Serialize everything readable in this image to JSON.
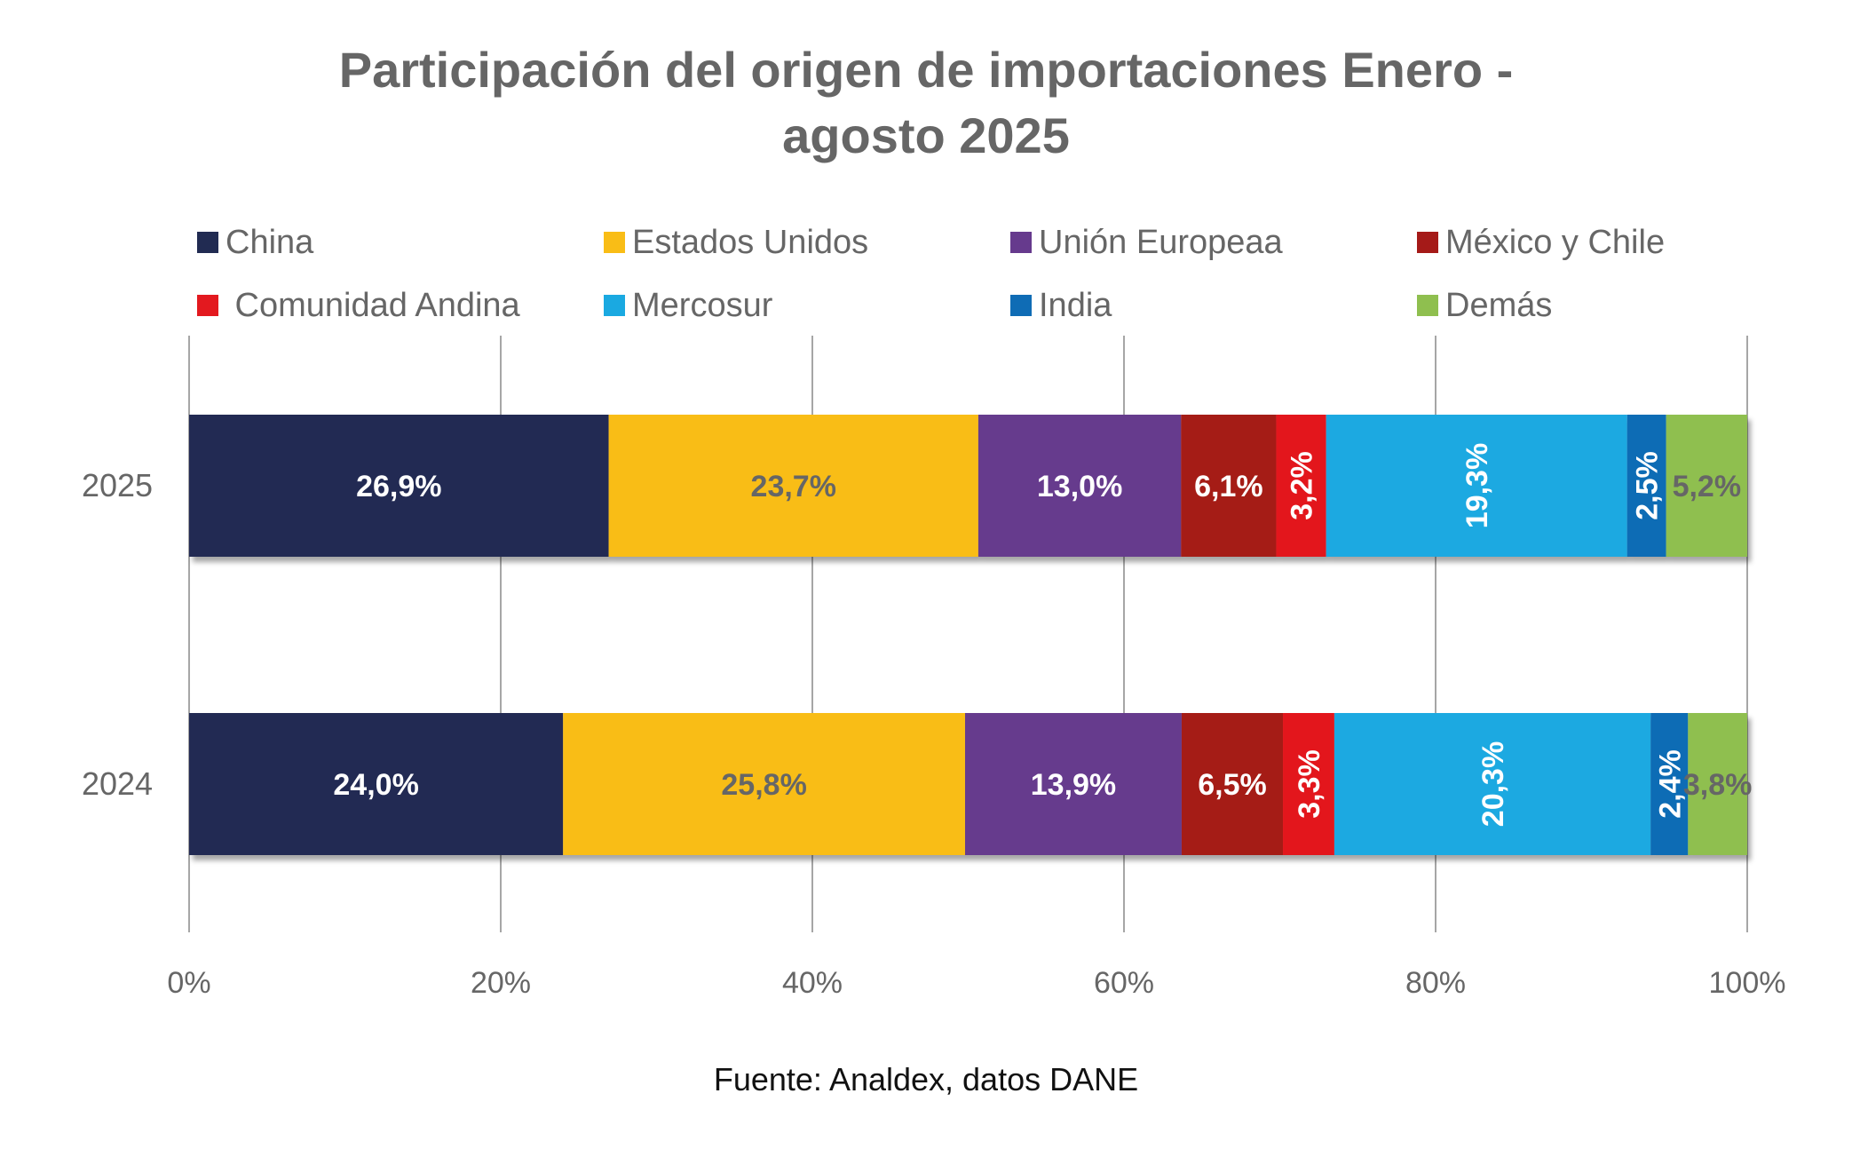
{
  "chart_data": {
    "type": "bar",
    "orientation": "horizontal",
    "stacked": "percent",
    "title": "Participación del origen de importaciones Enero - agosto 2025",
    "title_lines": [
      "Participación del origen de importaciones Enero -",
      "agosto 2025"
    ],
    "xlabel": "",
    "ylabel": "",
    "xlim": [
      0,
      100
    ],
    "x_ticks": [
      "0%",
      "20%",
      "40%",
      "60%",
      "80%",
      "100%"
    ],
    "x_tick_values": [
      0,
      20,
      40,
      60,
      80,
      100
    ],
    "grid": true,
    "legend_position": "top",
    "categories": [
      "2025",
      "2024"
    ],
    "series": [
      {
        "name": "China",
        "color": "#212B52",
        "label_color": "#FFFFFF",
        "label_rotated": false,
        "values": [
          26.9,
          24.0
        ],
        "labels": [
          "26,9%",
          "24,0%"
        ]
      },
      {
        "name": "Estados Unidos",
        "color": "#F9BD16",
        "label_color": "#666666",
        "label_rotated": false,
        "values": [
          23.7,
          25.8
        ],
        "labels": [
          "23,7%",
          "25,8%"
        ]
      },
      {
        "name": "Unión Europeaa",
        "color": "#663A8D",
        "label_color": "#FFFFFF",
        "label_rotated": false,
        "values": [
          13.0,
          13.9
        ],
        "labels": [
          "13,0%",
          "13,9%"
        ]
      },
      {
        "name": "México y Chile",
        "color": "#A51A18",
        "label_color": "#FFFFFF",
        "label_rotated": false,
        "values": [
          6.1,
          6.5
        ],
        "labels": [
          "6,1%",
          "6,5%"
        ]
      },
      {
        "name": " Comunidad Andina",
        "color": "#E3191F",
        "label_color": "#FFFFFF",
        "label_rotated": true,
        "values": [
          3.2,
          3.3
        ],
        "labels": [
          "3,2%",
          "3,3%"
        ]
      },
      {
        "name": "Mercosur",
        "color": "#1AA9E1",
        "label_color": "#FFFFFF",
        "label_rotated": true,
        "values": [
          19.3,
          20.3
        ],
        "labels": [
          "19,3%",
          "20,3%"
        ]
      },
      {
        "name": "India",
        "color": "#0F6CB5",
        "label_color": "#FFFFFF",
        "label_rotated": true,
        "values": [
          2.5,
          2.4
        ],
        "labels": [
          "2,5%",
          "2,4%"
        ]
      },
      {
        "name": "Demás",
        "color": "#8FBF4F",
        "label_color": "#666666",
        "label_rotated": false,
        "values": [
          5.2,
          3.8
        ],
        "labels": [
          "5,2%",
          "3,8%"
        ]
      }
    ],
    "source": "Fuente: Analdex, datos DANE"
  }
}
